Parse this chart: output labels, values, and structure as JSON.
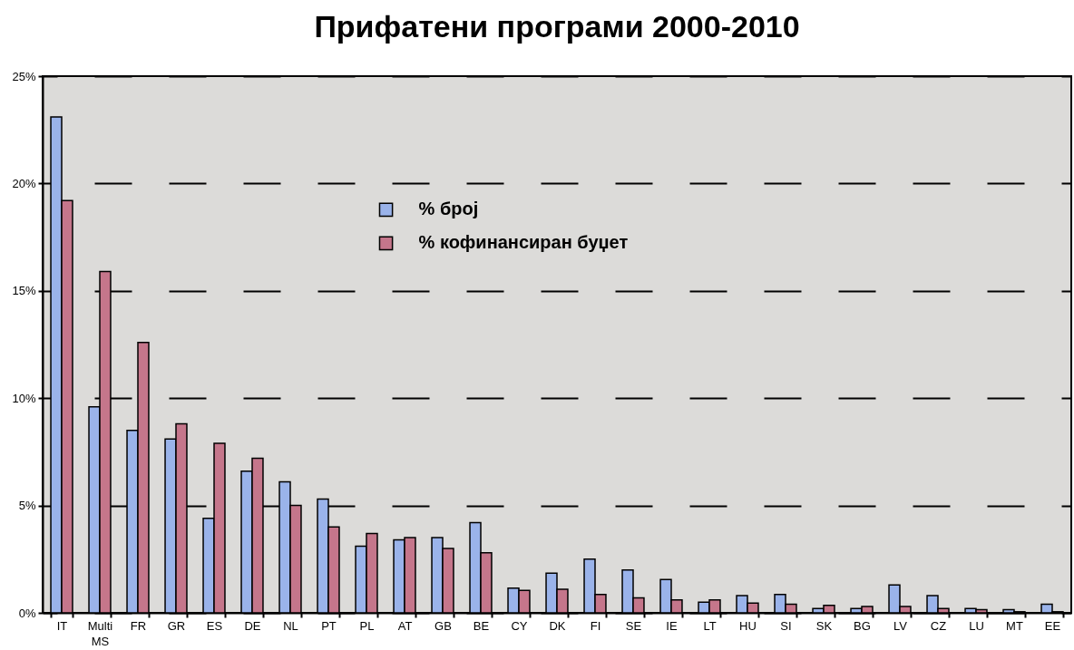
{
  "chart_data": {
    "type": "bar",
    "title": "Прифатени програми 2000-2010",
    "categories": [
      "IT",
      "Multi MS",
      "FR",
      "GR",
      "ES",
      "DE",
      "NL",
      "PT",
      "PL",
      "AT",
      "GB",
      "BE",
      "CY",
      "DK",
      "FI",
      "SE",
      "IE",
      "LT",
      "HU",
      "SI",
      "SK",
      "BG",
      "LV",
      "CZ",
      "LU",
      "MT",
      "EE"
    ],
    "series": [
      {
        "name": "% број",
        "color": "#9ab3ea",
        "values": [
          23.1,
          9.6,
          8.5,
          8.1,
          4.4,
          6.6,
          6.1,
          5.3,
          3.1,
          3.4,
          3.5,
          4.2,
          1.15,
          1.85,
          2.5,
          2.0,
          1.55,
          0.5,
          0.8,
          0.85,
          0.2,
          0.2,
          1.3,
          0.8,
          0.2,
          0.15,
          0.4
        ]
      },
      {
        "name": "% кофинансиран буџет",
        "color": "#c5768b",
        "values": [
          19.2,
          15.9,
          12.6,
          8.8,
          7.9,
          7.2,
          5.0,
          4.0,
          3.7,
          3.5,
          3.0,
          2.8,
          1.05,
          1.1,
          0.85,
          0.7,
          0.6,
          0.6,
          0.45,
          0.4,
          0.35,
          0.3,
          0.3,
          0.2,
          0.15,
          0.05,
          0.05
        ]
      }
    ],
    "ylim": [
      0,
      25
    ],
    "yticks": [
      {
        "value": 0,
        "label": "0%"
      },
      {
        "value": 5,
        "label": "5%"
      },
      {
        "value": 10,
        "label": "10%"
      },
      {
        "value": 15,
        "label": "15%"
      },
      {
        "value": 20,
        "label": "20%"
      },
      {
        "value": 25,
        "label": "25%"
      }
    ],
    "grid": "y",
    "legend": "top"
  }
}
